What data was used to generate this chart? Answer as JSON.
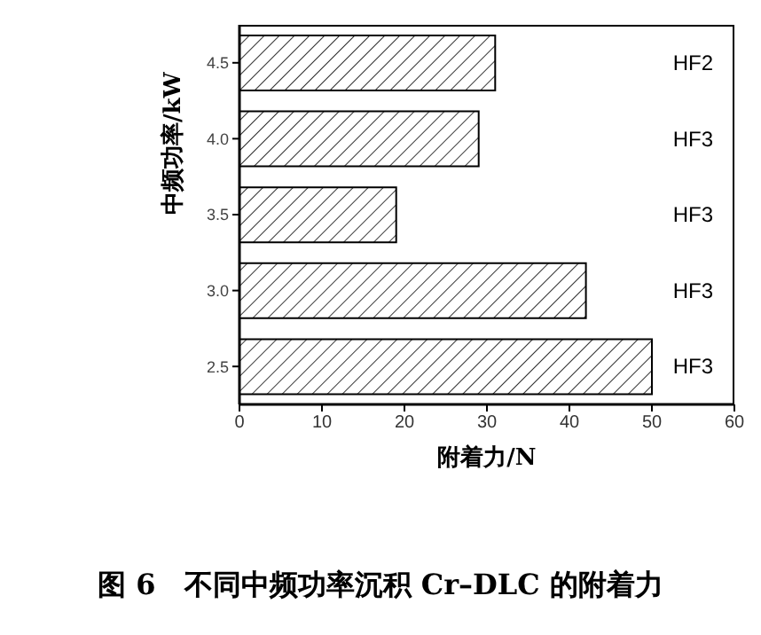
{
  "chart_data": {
    "type": "bar",
    "orientation": "horizontal",
    "title": "图 6　不同中频功率沉积 Cr–DLC 的附着力",
    "xlabel": "附着力/N",
    "ylabel": "中频功率/kW",
    "categories": [
      "4.5",
      "4.0",
      "3.5",
      "3.0",
      "2.5"
    ],
    "values": [
      31,
      29,
      19,
      42,
      50
    ],
    "value_labels": [
      "HF2",
      "HF3",
      "HF3",
      "HF3",
      "HF3"
    ],
    "color": "#000000",
    "xlim": [
      0,
      60
    ],
    "xticks": [
      0,
      10,
      20,
      30,
      40,
      50,
      60
    ]
  }
}
